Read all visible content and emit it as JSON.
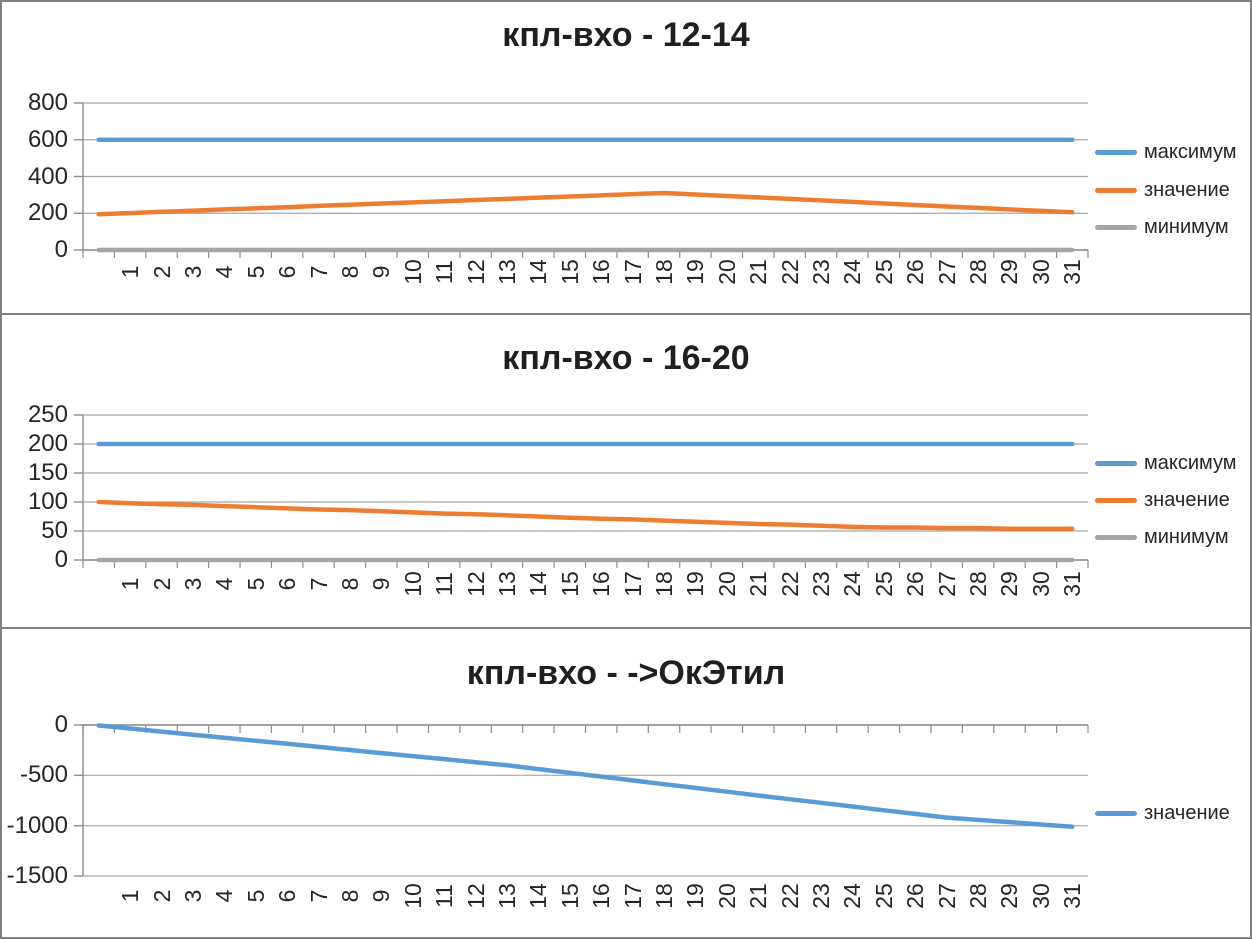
{
  "palette": {
    "blue": "#5B9BD5",
    "orange": "#ED7D31",
    "gray": "#A5A5A5",
    "gridline": "#A6A6A6",
    "axis": "#8C8C8C",
    "text": "#262626",
    "border": "#7f7f7f"
  },
  "categories": [
    "",
    "1",
    "2",
    "3",
    "4",
    "5",
    "6",
    "7",
    "8",
    "9",
    "10",
    "11",
    "12",
    "13",
    "14",
    "15",
    "16",
    "17",
    "18",
    "19",
    "20",
    "21",
    "22",
    "23",
    "24",
    "25",
    "26",
    "27",
    "28",
    "29",
    "30",
    "31"
  ],
  "chart_data": [
    {
      "type": "line",
      "title": "кпл-вхо - 12-14",
      "xlabel": "",
      "ylabel": "",
      "ylim": [
        0,
        800
      ],
      "yticks": [
        0,
        200,
        400,
        600,
        800
      ],
      "grid": true,
      "legend_position": "right",
      "series": [
        {
          "name": "максимум",
          "color": "#5B9BD5",
          "values": [
            600,
            600,
            600,
            600,
            600,
            600,
            600,
            600,
            600,
            600,
            600,
            600,
            600,
            600,
            600,
            600,
            600,
            600,
            600,
            600,
            600,
            600,
            600,
            600,
            600,
            600,
            600,
            600,
            600,
            600,
            600,
            600
          ]
        },
        {
          "name": "значение",
          "color": "#ED7D31",
          "values": [
            195,
            201,
            208,
            214,
            221,
            227,
            233,
            240,
            246,
            253,
            259,
            265,
            272,
            278,
            285,
            291,
            297,
            304,
            310,
            302,
            294,
            286,
            278,
            270,
            262,
            253,
            245,
            237,
            229,
            221,
            213,
            205
          ]
        },
        {
          "name": "минимум",
          "color": "#A5A5A5",
          "values": [
            0,
            0,
            0,
            0,
            0,
            0,
            0,
            0,
            0,
            0,
            0,
            0,
            0,
            0,
            0,
            0,
            0,
            0,
            0,
            0,
            0,
            0,
            0,
            0,
            0,
            0,
            0,
            0,
            0,
            0,
            0,
            0
          ]
        }
      ]
    },
    {
      "type": "line",
      "title": "кпл-вхо - 16-20",
      "xlabel": "",
      "ylabel": "",
      "ylim": [
        0,
        250
      ],
      "yticks": [
        0,
        50,
        100,
        150,
        200,
        250
      ],
      "grid": true,
      "legend_position": "right",
      "series": [
        {
          "name": "максимум",
          "color": "#5B9BD5",
          "values": [
            200,
            200,
            200,
            200,
            200,
            200,
            200,
            200,
            200,
            200,
            200,
            200,
            200,
            200,
            200,
            200,
            200,
            200,
            200,
            200,
            200,
            200,
            200,
            200,
            200,
            200,
            200,
            200,
            200,
            200,
            200,
            200
          ]
        },
        {
          "name": "значение",
          "color": "#ED7D31",
          "values": [
            100,
            98,
            96,
            95,
            93,
            91,
            89,
            87,
            86,
            84,
            82,
            80,
            79,
            77,
            75,
            73,
            71,
            70,
            68,
            66,
            64,
            62,
            61,
            59,
            57,
            56,
            56,
            55,
            55,
            54,
            54,
            54
          ]
        },
        {
          "name": "минимум",
          "color": "#A5A5A5",
          "values": [
            0,
            0,
            0,
            0,
            0,
            0,
            0,
            0,
            0,
            0,
            0,
            0,
            0,
            0,
            0,
            0,
            0,
            0,
            0,
            0,
            0,
            0,
            0,
            0,
            0,
            0,
            0,
            0,
            0,
            0,
            0,
            0
          ]
        }
      ]
    },
    {
      "type": "line",
      "title": "кпл-вхо - ->ОкЭтил",
      "xlabel": "",
      "ylabel": "",
      "ylim": [
        -1500,
        0
      ],
      "yticks": [
        0,
        -500,
        -1000,
        -1500
      ],
      "grid": true,
      "legend_position": "right",
      "series": [
        {
          "name": "значение",
          "color": "#5B9BD5",
          "values": [
            -5,
            -35,
            -66,
            -96,
            -127,
            -157,
            -187,
            -218,
            -248,
            -279,
            -309,
            -339,
            -370,
            -400,
            -438,
            -475,
            -513,
            -550,
            -588,
            -625,
            -663,
            -700,
            -737,
            -773,
            -810,
            -847,
            -883,
            -920,
            -943,
            -965,
            -988,
            -1010
          ]
        }
      ]
    }
  ]
}
